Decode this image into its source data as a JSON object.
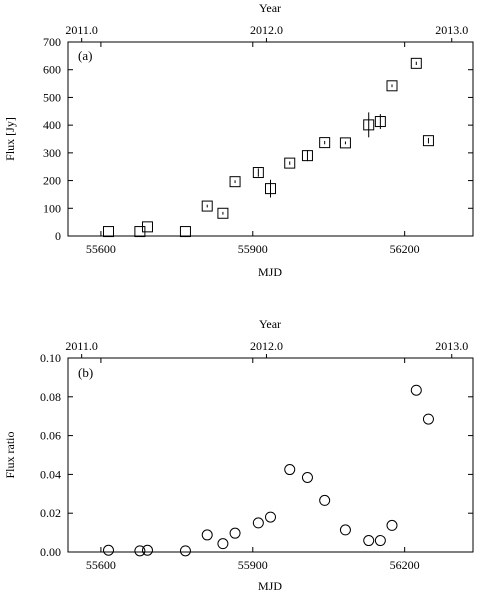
{
  "chart_data": [
    {
      "type": "scatter",
      "panel_label": "(a)",
      "marker": "square",
      "xlabel": "MJD",
      "ylabel": "Flux [Jy]",
      "top_axis_label": "Year",
      "xlim": [
        55535,
        56335
      ],
      "ylim": [
        0,
        700
      ],
      "x_ticks": [
        55600,
        55900,
        56200
      ],
      "x_tick_labels": [
        "55600",
        "55900",
        "56200"
      ],
      "y_ticks": [
        0,
        100,
        200,
        300,
        400,
        500,
        600,
        700
      ],
      "y_tick_labels": [
        "0",
        "100",
        "200",
        "300",
        "400",
        "500",
        "600",
        "700"
      ],
      "top_ticks": [
        55562,
        55927,
        56293
      ],
      "top_tick_labels": [
        "2011.0",
        "2012.0",
        "2013.0"
      ],
      "points": [
        {
          "x": 55615,
          "y": 16,
          "err": 0
        },
        {
          "x": 55677,
          "y": 16,
          "err": 0
        },
        {
          "x": 55692,
          "y": 33,
          "err": 0
        },
        {
          "x": 55767,
          "y": 16,
          "err": 0
        },
        {
          "x": 55810,
          "y": 108,
          "err": 5
        },
        {
          "x": 55841,
          "y": 82,
          "err": 5
        },
        {
          "x": 55865,
          "y": 196,
          "err": 5
        },
        {
          "x": 55911,
          "y": 229,
          "err": 15
        },
        {
          "x": 55935,
          "y": 171,
          "err": 32
        },
        {
          "x": 55973,
          "y": 263,
          "err": 6
        },
        {
          "x": 56008,
          "y": 290,
          "err": 20
        },
        {
          "x": 56042,
          "y": 337,
          "err": 6
        },
        {
          "x": 56083,
          "y": 336,
          "err": 5
        },
        {
          "x": 56129,
          "y": 401,
          "err": 45
        },
        {
          "x": 56152,
          "y": 413,
          "err": 27
        },
        {
          "x": 56175,
          "y": 542,
          "err": 5
        },
        {
          "x": 56223,
          "y": 623,
          "err": 6
        },
        {
          "x": 56247,
          "y": 344,
          "err": 10
        }
      ]
    },
    {
      "type": "scatter",
      "panel_label": "(b)",
      "marker": "circle",
      "xlabel": "MJD",
      "ylabel": "Flux ratio",
      "top_axis_label": "Year",
      "xlim": [
        55535,
        56335
      ],
      "ylim": [
        0,
        0.1
      ],
      "x_ticks": [
        55600,
        55900,
        56200
      ],
      "x_tick_labels": [
        "55600",
        "55900",
        "56200"
      ],
      "y_ticks": [
        0,
        0.02,
        0.04,
        0.06,
        0.08,
        0.1
      ],
      "y_tick_labels": [
        "0.00",
        "0.02",
        "0.04",
        "0.06",
        "0.08",
        "0.10"
      ],
      "top_ticks": [
        55562,
        55927,
        56293
      ],
      "top_tick_labels": [
        "2011.0",
        "2012.0",
        "2013.0"
      ],
      "points": [
        {
          "x": 55615,
          "y": 0.0009
        },
        {
          "x": 55677,
          "y": 0.0006
        },
        {
          "x": 55692,
          "y": 0.0009
        },
        {
          "x": 55767,
          "y": 0.0006
        },
        {
          "x": 55810,
          "y": 0.0088
        },
        {
          "x": 55841,
          "y": 0.0043
        },
        {
          "x": 55865,
          "y": 0.0097
        },
        {
          "x": 55911,
          "y": 0.015
        },
        {
          "x": 55935,
          "y": 0.018
        },
        {
          "x": 55973,
          "y": 0.0425
        },
        {
          "x": 56008,
          "y": 0.0384
        },
        {
          "x": 56042,
          "y": 0.0266
        },
        {
          "x": 56083,
          "y": 0.0114
        },
        {
          "x": 56129,
          "y": 0.0059
        },
        {
          "x": 56152,
          "y": 0.0059
        },
        {
          "x": 56175,
          "y": 0.0137
        },
        {
          "x": 56223,
          "y": 0.0834
        },
        {
          "x": 56247,
          "y": 0.0685
        }
      ]
    }
  ]
}
